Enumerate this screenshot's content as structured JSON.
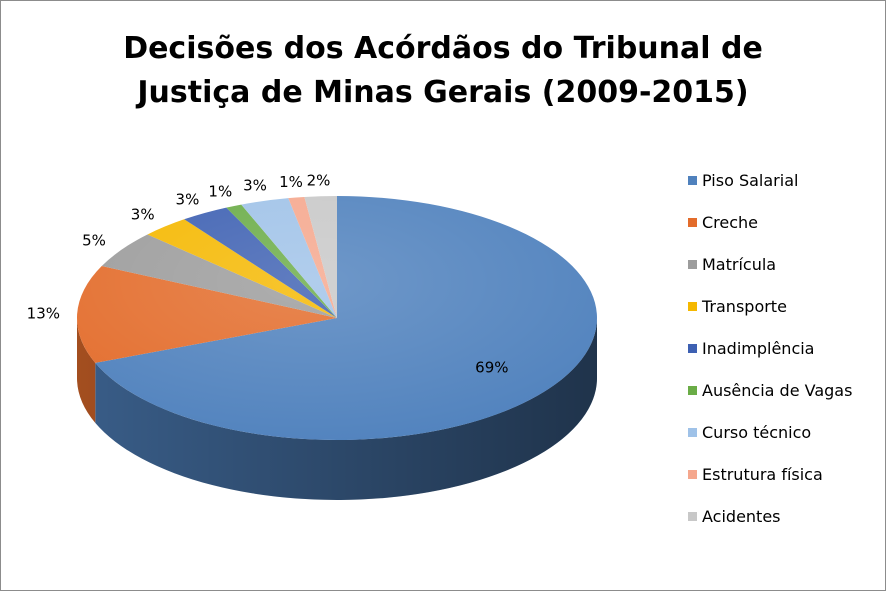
{
  "chart_data": {
    "type": "pie",
    "title_lines": [
      "Decisões dos Acórdãos do Tribunal de",
      "Justiça de Minas Gerais (2009-2015)"
    ],
    "categories": [
      "Piso Salarial",
      "Creche",
      "Matrícula",
      "Transporte",
      "Inadimplência",
      "Ausência de Vagas",
      "Curso técnico",
      "Estrutura física",
      "Acidentes"
    ],
    "values": [
      69,
      13,
      5,
      3,
      3,
      1,
      3,
      1,
      2
    ],
    "value_labels": [
      "69%",
      "13%",
      "5%",
      "3%",
      "3%",
      "1%",
      "3%",
      "1%",
      "2%"
    ],
    "colors": [
      "#4f81bd",
      "#e36c2b",
      "#9c9c9c",
      "#f5b800",
      "#3d60b2",
      "#6aac46",
      "#9fc2e8",
      "#f5a78d",
      "#c8c8c8"
    ],
    "legend_position": "right",
    "style": "3d-pie"
  }
}
